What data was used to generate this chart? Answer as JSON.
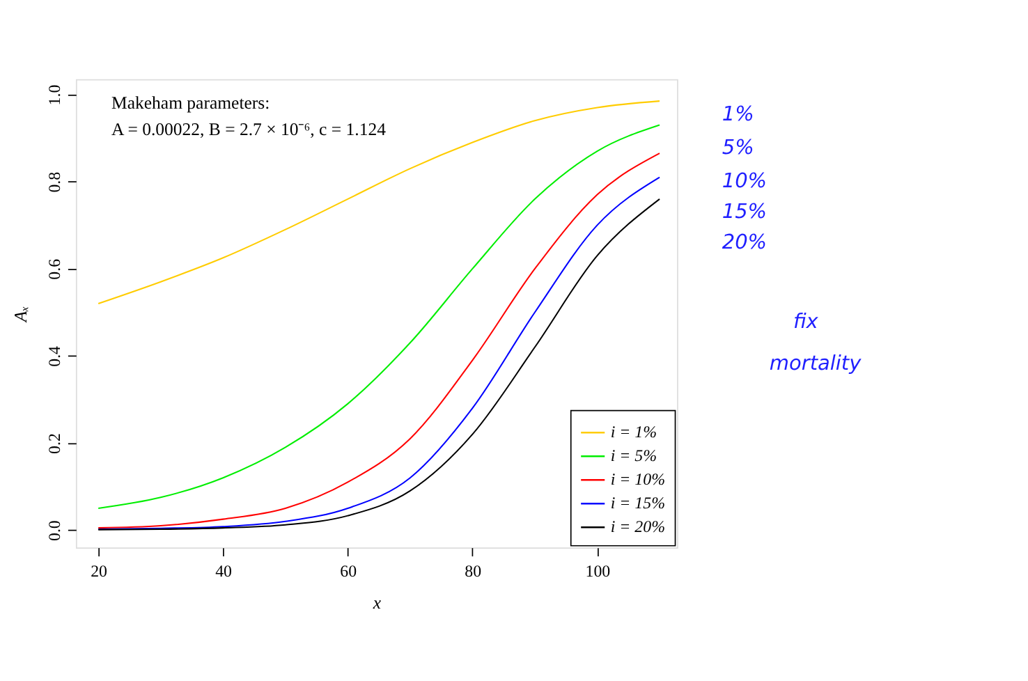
{
  "chart_data": {
    "type": "line",
    "xlabel": "x",
    "ylabel": "Aₓ",
    "x": [
      20,
      30,
      40,
      50,
      60,
      70,
      80,
      90,
      100,
      110
    ],
    "series": [
      {
        "name": "i = 1%",
        "color": "#ffcc00",
        "values": [
          0.52,
          0.57,
          0.625,
          0.69,
          0.76,
          0.83,
          0.89,
          0.94,
          0.97,
          0.985
        ]
      },
      {
        "name": "i = 5%",
        "color": "#00ee00",
        "values": [
          0.05,
          0.075,
          0.12,
          0.19,
          0.29,
          0.43,
          0.6,
          0.76,
          0.87,
          0.93
        ]
      },
      {
        "name": "i = 10%",
        "color": "#ff0000",
        "values": [
          0.005,
          0.01,
          0.025,
          0.05,
          0.11,
          0.21,
          0.39,
          0.6,
          0.77,
          0.865
        ]
      },
      {
        "name": "i = 15%",
        "color": "#0000ff",
        "values": [
          0.002,
          0.004,
          0.008,
          0.02,
          0.05,
          0.12,
          0.28,
          0.5,
          0.7,
          0.81
        ]
      },
      {
        "name": "i = 20%",
        "color": "#000000",
        "values": [
          0.001,
          0.002,
          0.005,
          0.012,
          0.033,
          0.09,
          0.22,
          0.42,
          0.63,
          0.76
        ]
      }
    ],
    "xlim": [
      16.4,
      112.8
    ],
    "ylim": [
      -0.04,
      1.035
    ],
    "xticks": [
      20,
      40,
      60,
      80,
      100
    ],
    "yticks": [
      {
        "value": 0,
        "label": "0.0"
      },
      0.2,
      0.4,
      0.6,
      0.8,
      {
        "value": 1,
        "label": "1.0"
      }
    ],
    "annotations": [
      "Makeham parameters:",
      "A = 0.00022, B = 2.7 × 10⁻⁶, c = 1.124",
      "1%",
      "5%",
      "10%",
      "15%",
      "20%",
      "fix",
      "mortality"
    ],
    "grid": false,
    "legend": "bottom right",
    "marker": "none",
    "line_style": "solid"
  }
}
